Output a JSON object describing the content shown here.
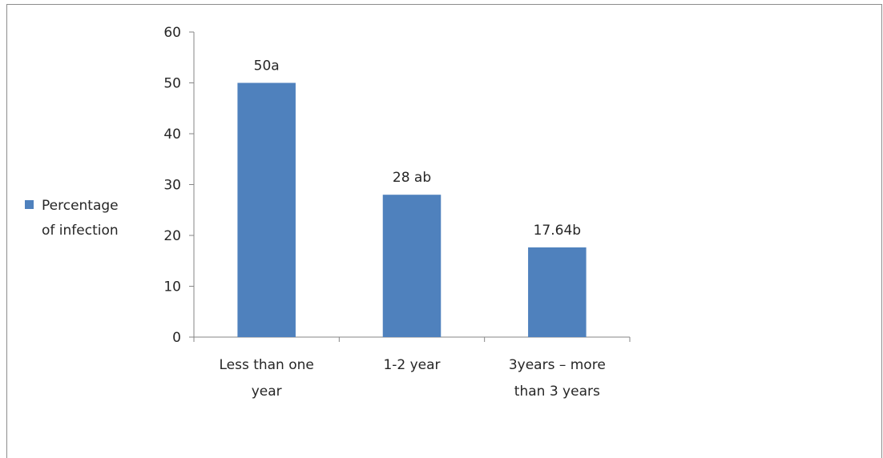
{
  "chart_data": {
    "type": "bar",
    "categories": [
      [
        "Less than  one",
        "year"
      ],
      [
        "1-2 year"
      ],
      [
        "3years  – more",
        "than 3 years"
      ]
    ],
    "series": [
      {
        "name": "Percentage of infection",
        "values": [
          50,
          28,
          17.64
        ],
        "data_labels": [
          "50a",
          "28 ab",
          "17.64b"
        ],
        "color": "#4f81bd"
      }
    ],
    "ylim": [
      0,
      60
    ],
    "yticks": [
      0,
      10,
      20,
      30,
      40,
      50,
      60
    ],
    "grid": false,
    "legend_position": "left",
    "legend_lines": [
      "Percentage",
      "of infection"
    ]
  }
}
